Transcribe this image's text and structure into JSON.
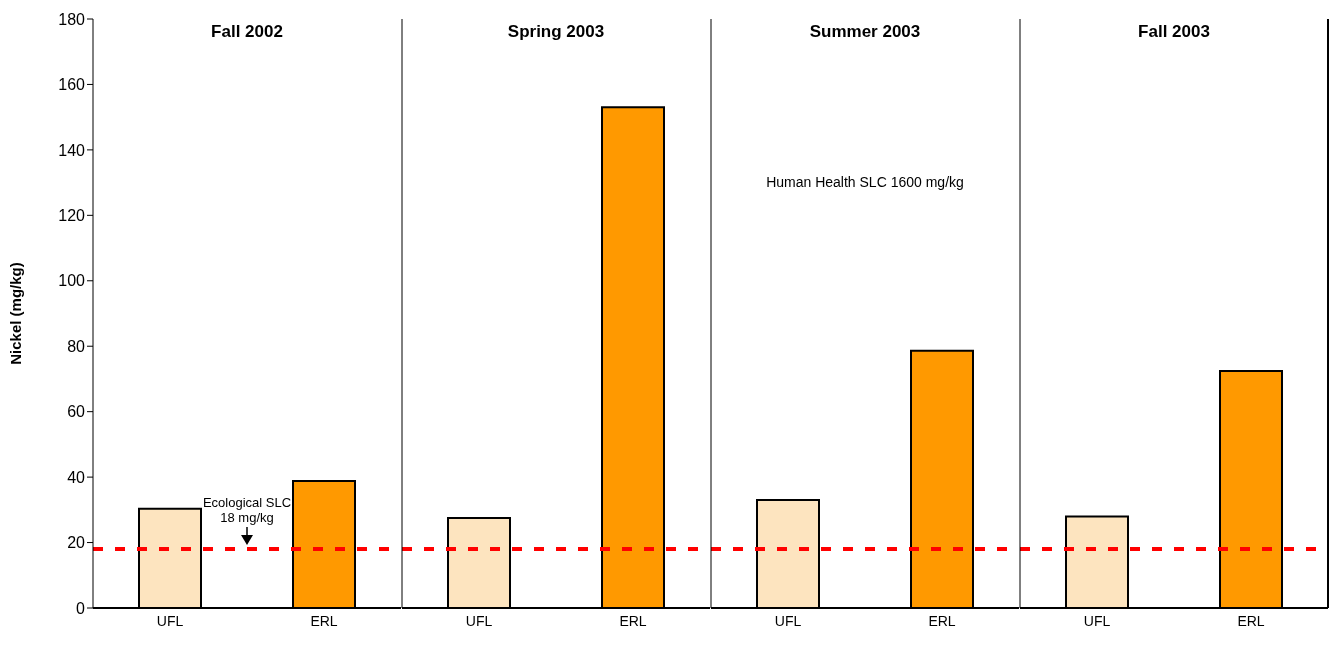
{
  "chart_data": [
    {
      "type": "bar",
      "title": "Fall 2002",
      "ylabel": "Nickel (mg/kg)",
      "categories": [
        "UFL",
        "ERL"
      ],
      "values": [
        30.3,
        38.8
      ],
      "colors": [
        "#fde4bf",
        "#ff9900"
      ],
      "ylim": [
        0,
        180
      ],
      "yticks": [
        0,
        20,
        40,
        60,
        80,
        100,
        120,
        140,
        160,
        180
      ],
      "grid": false,
      "legend": false,
      "ref_lines": [
        {
          "axis": "y",
          "value": 18,
          "label": "Ecological SLC 18 mg/kg",
          "color": "#ff0000",
          "line_style": "dashed"
        }
      ]
    },
    {
      "type": "bar",
      "title": "Spring 2003",
      "categories": [
        "UFL",
        "ERL"
      ],
      "values": [
        27.5,
        153
      ],
      "colors": [
        "#fde4bf",
        "#ff9900"
      ],
      "ylim": [
        0,
        180
      ],
      "yticks": [
        0,
        20,
        40,
        60,
        80,
        100,
        120,
        140,
        160,
        180
      ],
      "tick_labels": "x",
      "grid": false,
      "legend": false,
      "ref_lines": [
        {
          "axis": "y",
          "value": 18,
          "color": "#ff0000",
          "line_style": "dashed"
        }
      ]
    },
    {
      "type": "bar",
      "title": "Summer 2003",
      "categories": [
        "UFL",
        "ERL"
      ],
      "values": [
        33,
        78.6
      ],
      "colors": [
        "#fde4bf",
        "#ff9900"
      ],
      "ylim": [
        0,
        180
      ],
      "yticks": [
        0,
        20,
        40,
        60,
        80,
        100,
        120,
        140,
        160,
        180
      ],
      "tick_labels": "x",
      "grid": false,
      "legend": false,
      "annotations": [
        "Human Health SLC 1600 mg/kg"
      ],
      "ref_lines": [
        {
          "axis": "y",
          "value": 18,
          "color": "#ff0000",
          "line_style": "dashed"
        }
      ]
    },
    {
      "type": "bar",
      "title": "Fall 2003",
      "categories": [
        "UFL",
        "ERL"
      ],
      "values": [
        28,
        72.4
      ],
      "colors": [
        "#fde4bf",
        "#ff9900"
      ],
      "ylim": [
        0,
        180
      ],
      "yticks": [
        0,
        20,
        40,
        60,
        80,
        100,
        120,
        140,
        160,
        180
      ],
      "tick_labels": "x",
      "grid": false,
      "legend": false,
      "ref_lines": [
        {
          "axis": "y",
          "value": 18,
          "color": "#ff0000",
          "line_style": "dashed"
        }
      ]
    }
  ]
}
